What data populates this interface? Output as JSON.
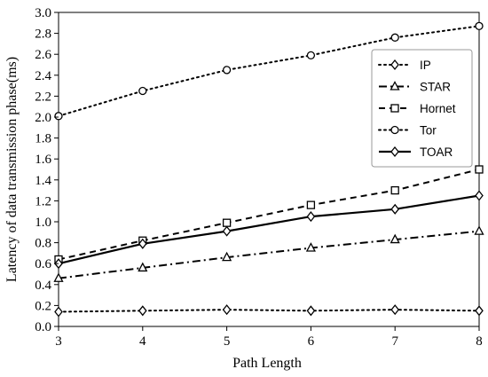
{
  "chart_data": {
    "type": "line",
    "xlabel": "Path Length",
    "ylabel": "Latency of data transmission phase(ms)",
    "x": [
      3,
      4,
      5,
      6,
      7,
      8
    ],
    "xlim": [
      3,
      8
    ],
    "ylim": [
      0.0,
      3.0
    ],
    "xticks": [
      "3",
      "4",
      "5",
      "6",
      "7",
      "8"
    ],
    "yticks": [
      "0.0",
      "0.2",
      "0.4",
      "0.6",
      "0.8",
      "1.0",
      "1.2",
      "1.4",
      "1.6",
      "1.8",
      "2.0",
      "2.2",
      "2.4",
      "2.6",
      "2.8",
      "3.0"
    ],
    "grid": false,
    "legend_position": "top-right",
    "series": [
      {
        "name": "IP",
        "line_style": "dotted",
        "marker": "diamond",
        "values": [
          0.14,
          0.15,
          0.16,
          0.15,
          0.16,
          0.15
        ]
      },
      {
        "name": "STAR",
        "line_style": "dash-dot",
        "marker": "triangle",
        "values": [
          0.46,
          0.56,
          0.66,
          0.75,
          0.83,
          0.91
        ]
      },
      {
        "name": "Hornet",
        "line_style": "dashed",
        "marker": "square",
        "values": [
          0.64,
          0.82,
          0.99,
          1.16,
          1.3,
          1.5
        ]
      },
      {
        "name": "Tor",
        "line_style": "dotted",
        "marker": "circle",
        "values": [
          2.01,
          2.25,
          2.45,
          2.59,
          2.76,
          2.87
        ]
      },
      {
        "name": "TOAR",
        "line_style": "solid",
        "marker": "diamond",
        "values": [
          0.6,
          0.79,
          0.91,
          1.05,
          1.12,
          1.25
        ]
      }
    ]
  }
}
